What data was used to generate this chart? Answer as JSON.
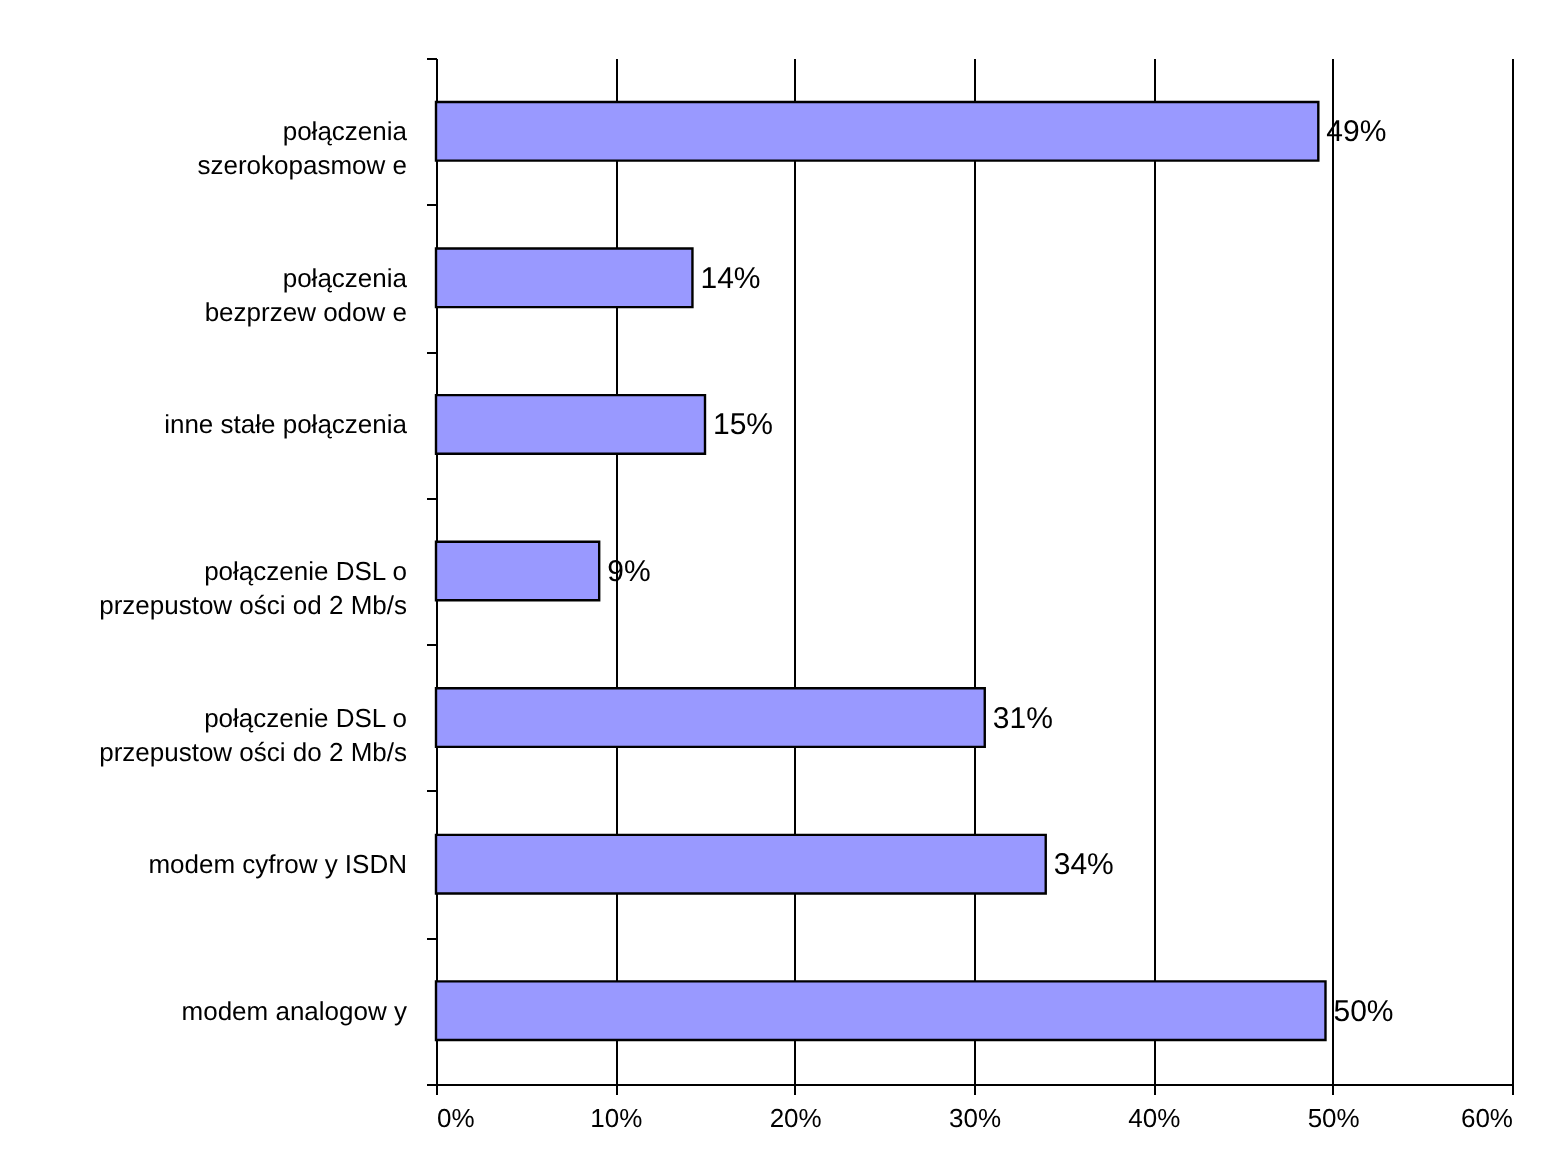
{
  "chart_data": {
    "type": "bar",
    "orientation": "horizontal",
    "categories": [
      "połączenia\nszerokopasmow e",
      "połączenia\nbezprzew odow e",
      "inne stałe połączenia",
      "połączenie DSL o\nprzepustow ości od 2 Mb/s",
      "połączenie DSL o\nprzepustow ości do 2 Mb/s",
      "modem cyfrow y ISDN",
      "modem analogow y"
    ],
    "values": [
      49.2,
      14.3,
      15.0,
      9.1,
      30.6,
      34.0,
      49.6
    ],
    "value_labels": [
      "49%",
      "14%",
      "15%",
      "9%",
      "31%",
      "34%",
      "50%"
    ],
    "color": "#9999ff",
    "xlim": [
      0,
      60
    ],
    "xticks": [
      {
        "value": 0,
        "label": "0%"
      },
      {
        "value": 10,
        "label": "10%"
      },
      {
        "value": 20,
        "label": "20%"
      },
      {
        "value": 30,
        "label": "30%"
      },
      {
        "value": 40,
        "label": "40%"
      },
      {
        "value": 50,
        "label": "50%"
      },
      {
        "value": 60,
        "label": "60%"
      }
    ],
    "grid": "x"
  }
}
